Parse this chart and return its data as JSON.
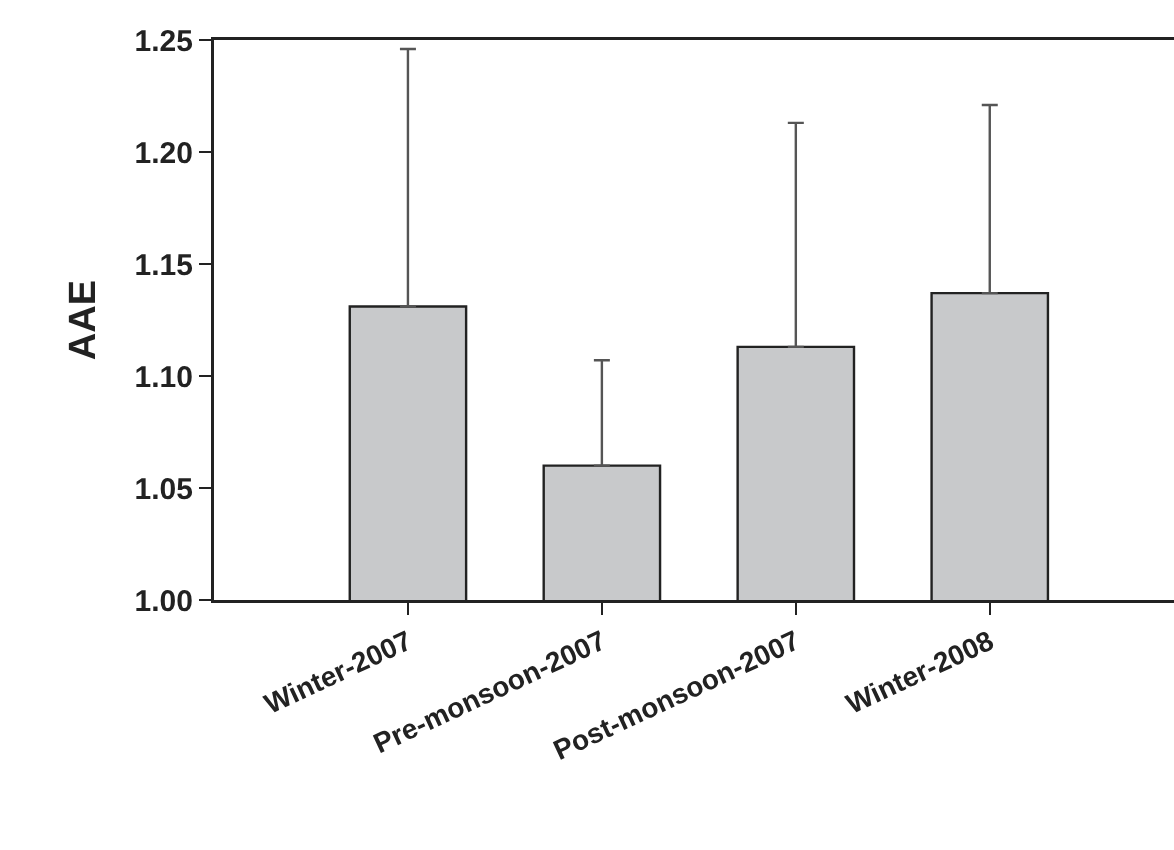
{
  "chart_data": {
    "type": "bar",
    "ylabel": "AAE",
    "categories": [
      "Winter-2007",
      "Pre-monsoon-2007",
      "Post-monsoon-2007",
      "Winter-2008"
    ],
    "values": [
      1.131,
      1.06,
      1.113,
      1.137
    ],
    "errors": [
      [
        1.131,
        1.246
      ],
      [
        1.06,
        1.107
      ],
      [
        1.113,
        1.213
      ],
      [
        1.137,
        1.221
      ]
    ],
    "color": "#c8c9cb",
    "ylim": [
      1.0,
      1.25
    ],
    "yticks": [
      {
        "value": 1.0,
        "label": "1.00"
      },
      {
        "value": 1.05,
        "label": "1.05"
      },
      {
        "value": 1.1,
        "label": "1.10"
      },
      {
        "value": 1.15,
        "label": "1.15"
      },
      {
        "value": 1.2,
        "label": "1.20"
      },
      {
        "value": 1.25,
        "label": "1.25"
      }
    ],
    "grid": false
  }
}
